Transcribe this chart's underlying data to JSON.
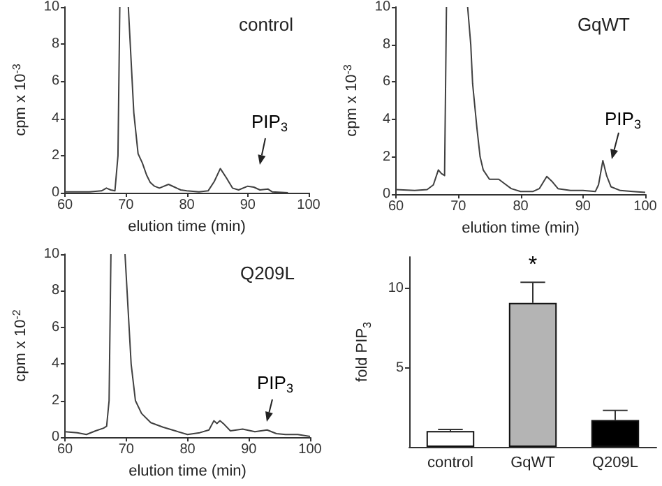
{
  "chart_data": [
    {
      "type": "line",
      "title": "control",
      "xlabel": "elution time (min)",
      "ylabel": "cpm x 10$^{-3}$",
      "xlim": [
        60,
        100
      ],
      "ylim": [
        0,
        10
      ],
      "xticks": [
        60,
        70,
        80,
        90,
        100
      ],
      "yticks": [
        0,
        2,
        4,
        6,
        8,
        10
      ],
      "marker": "none",
      "series": [
        {
          "color": "#404040",
          "x": [
            60,
            64,
            66,
            66.8,
            67.5,
            68.2,
            68.7,
            69.0,
            69.7,
            70.4,
            71.3,
            72,
            72.7,
            73.4,
            74,
            74.7,
            75.5,
            77,
            78,
            79,
            80,
            82,
            83.5,
            84.5,
            85.5,
            86.5,
            87.5,
            88.5,
            90,
            91,
            92,
            93.3,
            94,
            96.6
          ],
          "values": [
            0.05,
            0.05,
            0.1,
            0.25,
            0.15,
            0.1,
            2,
            10,
            null,
            10,
            4.3,
            2.1,
            1.6,
            0.95,
            0.55,
            0.35,
            0.25,
            0.45,
            0.3,
            0.15,
            0.1,
            0.05,
            0.1,
            0.6,
            1.3,
            0.8,
            0.25,
            0.15,
            0.35,
            0.3,
            0.15,
            0.2,
            0.05,
            0
          ]
        }
      ],
      "annotations": [
        "PIP$_{3}$"
      ]
    },
    {
      "type": "line",
      "title": "GqWT",
      "xlabel": "elution time (min)",
      "ylabel": "cpm x 10$^{-3}$",
      "xlim": [
        60,
        100
      ],
      "ylim": [
        0,
        10
      ],
      "xticks": [
        60,
        70,
        80,
        90,
        100
      ],
      "yticks": [
        0,
        2,
        4,
        6,
        8,
        10
      ],
      "marker": "none",
      "series": [
        {
          "color": "#404040",
          "x": [
            60,
            63,
            65,
            66,
            66.8,
            67.3,
            67.8,
            68.1,
            69.8,
            71.5,
            72,
            72.3,
            73,
            73.5,
            74,
            75,
            76.5,
            77.5,
            78.5,
            80,
            82,
            83,
            84.2,
            85,
            86,
            88,
            90,
            92,
            92.5,
            93.2,
            93.8,
            94.5,
            96,
            98,
            100
          ],
          "values": [
            0.25,
            0.2,
            0.25,
            0.5,
            1.3,
            1.1,
            1.0,
            10,
            null,
            10,
            8,
            5.9,
            3.5,
            2,
            1.3,
            0.8,
            0.8,
            0.55,
            0.3,
            0.15,
            0.15,
            0.3,
            0.95,
            0.7,
            0.3,
            0.2,
            0.2,
            0.15,
            0.5,
            1.8,
            1.0,
            0.4,
            0.2,
            0.15,
            0.1
          ]
        }
      ],
      "annotations": [
        "PIP$_{3}$"
      ]
    },
    {
      "type": "line",
      "title": "Q209L",
      "xlabel": "elution time (min)",
      "ylabel": "cpm x 10$^{-2}$",
      "xlim": [
        60,
        100
      ],
      "ylim": [
        0,
        10
      ],
      "xticks": [
        60,
        70,
        80,
        90,
        100
      ],
      "yticks": [
        0,
        2,
        4,
        6,
        8,
        10
      ],
      "marker": "none",
      "series": [
        {
          "color": "#404040",
          "x": [
            60,
            62,
            63.5,
            65,
            66.3,
            66.8,
            67.2,
            67.5,
            68.6,
            69.8,
            70.3,
            70.8,
            71.5,
            72.5,
            74,
            76,
            78,
            80,
            82,
            83.5,
            84.3,
            84.8,
            85.3,
            86,
            87,
            89,
            91,
            93,
            94.5,
            96,
            98,
            100
          ],
          "values": [
            0.3,
            0.25,
            0.15,
            0.35,
            0.5,
            0.6,
            2,
            10,
            null,
            10,
            7,
            4,
            2,
            1.3,
            0.8,
            0.55,
            0.35,
            0.15,
            0.25,
            0.4,
            0.9,
            0.75,
            0.9,
            0.7,
            0.35,
            0.45,
            0.3,
            0.4,
            0.2,
            0.15,
            0.15,
            0.05
          ]
        }
      ],
      "annotations": [
        "PIP$_{3}$"
      ]
    },
    {
      "type": "bar",
      "ylabel": "fold PIP$_{3}$",
      "categories": [
        "control",
        "GqWT",
        "Q209L"
      ],
      "values": [
        1.0,
        9.1,
        1.7
      ],
      "colors": [
        "#ffffff",
        "#b4b4b4",
        "#000000"
      ],
      "errors": [
        [
          1.0,
          1.1
        ],
        [
          9.1,
          10.4
        ],
        [
          1.7,
          2.3
        ]
      ],
      "ylim": [
        0,
        12
      ],
      "yticks": [
        5,
        10
      ],
      "annotations": [
        {
          "text": "*",
          "x": "GqWT",
          "y": 10.4
        }
      ]
    }
  ]
}
